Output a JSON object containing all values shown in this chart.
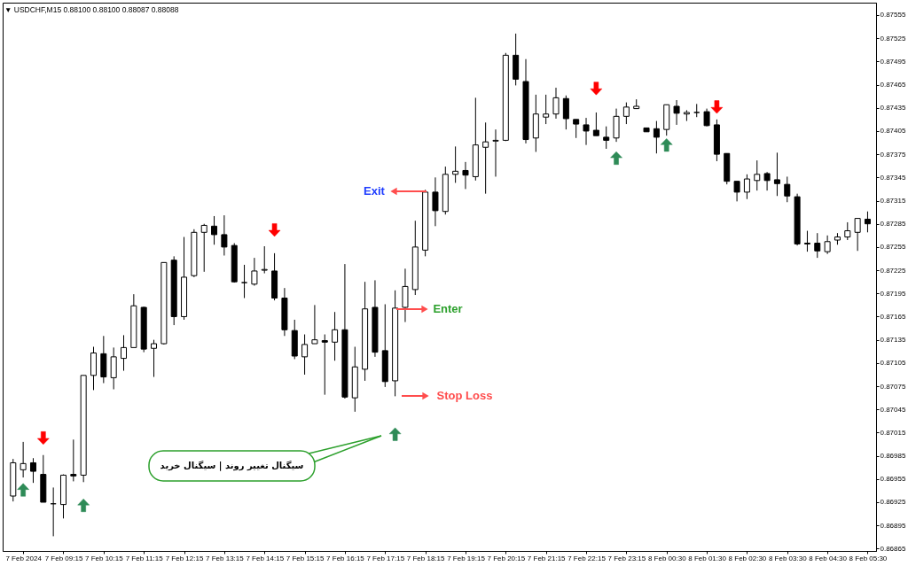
{
  "chart_data": {
    "type": "candlestick",
    "title": "▼ USDCHF,M15 0.88100 0.88100 0.88087 0.88088",
    "color": "#000000",
    "marker": "triangle",
    "categories": [
      null,
      "7 Feb 2024",
      null,
      null,
      null,
      "7 Feb 09:15",
      null,
      null,
      null,
      "7 Feb 10:15",
      null,
      null,
      null,
      "7 Feb 11:15",
      null,
      null,
      null,
      "7 Feb 12:15",
      null,
      null,
      null,
      "7 Feb 13:15",
      null,
      null,
      null,
      "7 Feb 14:15",
      null,
      null,
      null,
      "7 Feb 15:15",
      null,
      null,
      null,
      "7 Feb 16:15",
      null,
      null,
      null,
      "7 Feb 17:15",
      null,
      null,
      null,
      "7 Feb 18:15",
      null,
      null,
      null,
      "7 Feb 19:15",
      null,
      null,
      null,
      "7 Feb 20:15",
      null,
      null,
      null,
      "7 Feb 21:15",
      null,
      null,
      null,
      "7 Feb 22:15",
      null,
      null,
      null,
      "7 Feb 23:15",
      null,
      null,
      null,
      "8 Feb 00:30",
      null,
      null,
      null,
      "8 Feb 01:30",
      null,
      null,
      null,
      "8 Feb 02:30",
      null,
      null,
      null,
      "8 Feb 03:30",
      null,
      null,
      null,
      "8 Feb 04:30",
      null,
      null,
      null,
      "8 Feb 05:30"
    ],
    "ohlc": [
      [
        0.86933,
        0.86981,
        0.86926,
        0.86976
      ],
      [
        0.86967,
        0.87003,
        0.86957,
        0.86975
      ],
      [
        0.86976,
        0.86982,
        0.8695,
        0.86965
      ],
      [
        0.86961,
        0.86986,
        0.86925,
        0.86925
      ],
      [
        0.86923,
        0.86944,
        0.86881,
        0.86923
      ],
      [
        0.86922,
        0.86961,
        0.86904,
        0.8696
      ],
      [
        0.86961,
        0.87006,
        0.86952,
        0.86959
      ],
      [
        0.8696,
        0.87089,
        0.86951,
        0.87089
      ],
      [
        0.87089,
        0.87126,
        0.8707,
        0.87118
      ],
      [
        0.87117,
        0.8714,
        0.87079,
        0.87087
      ],
      [
        0.87086,
        0.87125,
        0.87071,
        0.87113
      ],
      [
        0.87111,
        0.87141,
        0.87095,
        0.87125
      ],
      [
        0.87125,
        0.87194,
        0.87125,
        0.87179
      ],
      [
        0.87177,
        0.87178,
        0.87119,
        0.87123
      ],
      [
        0.87124,
        0.87135,
        0.87087,
        0.8713
      ],
      [
        0.8713,
        0.87235,
        0.87129,
        0.87235
      ],
      [
        0.87238,
        0.87243,
        0.87154,
        0.87165
      ],
      [
        0.87165,
        0.87268,
        0.87161,
        0.87216
      ],
      [
        0.87218,
        0.87278,
        0.87216,
        0.87274
      ],
      [
        0.87274,
        0.87285,
        0.87223,
        0.87283
      ],
      [
        0.87282,
        0.87295,
        0.87258,
        0.87271
      ],
      [
        0.87271,
        0.87296,
        0.87244,
        0.87255
      ],
      [
        0.87257,
        0.8726,
        0.87209,
        0.8721
      ],
      [
        0.87209,
        0.87232,
        0.87189,
        0.87209
      ],
      [
        0.87207,
        0.87241,
        0.87205,
        0.87224
      ],
      [
        0.87225,
        0.87256,
        0.87221,
        0.87226
      ],
      [
        0.87224,
        0.87247,
        0.87186,
        0.87189
      ],
      [
        0.87189,
        0.87202,
        0.8714,
        0.87148
      ],
      [
        0.87147,
        0.87161,
        0.8711,
        0.87114
      ],
      [
        0.87113,
        0.87142,
        0.8709,
        0.87129
      ],
      [
        0.8713,
        0.8718,
        0.8713,
        0.87135
      ],
      [
        0.87134,
        0.87142,
        0.87064,
        0.87132
      ],
      [
        0.87132,
        0.87171,
        0.87108,
        0.87148
      ],
      [
        0.87148,
        0.87233,
        0.87059,
        0.87061
      ],
      [
        0.8706,
        0.87126,
        0.87042,
        0.871
      ],
      [
        0.87097,
        0.8721,
        0.87082,
        0.87175
      ],
      [
        0.87177,
        0.87212,
        0.87113,
        0.87119
      ],
      [
        0.87121,
        0.87181,
        0.87074,
        0.87081
      ],
      [
        0.87082,
        0.87199,
        0.87062,
        0.87176
      ],
      [
        0.87177,
        0.87227,
        0.87158,
        0.87204
      ],
      [
        0.872,
        0.87289,
        0.87193,
        0.87255
      ],
      [
        0.87251,
        0.87329,
        0.87243,
        0.87326
      ],
      [
        0.87326,
        0.87345,
        0.87282,
        0.87302
      ],
      [
        0.87301,
        0.87359,
        0.87297,
        0.87349
      ],
      [
        0.87349,
        0.87385,
        0.87338,
        0.87353
      ],
      [
        0.87354,
        0.87365,
        0.8733,
        0.87348
      ],
      [
        0.87346,
        0.87448,
        0.87341,
        0.87387
      ],
      [
        0.87384,
        0.87416,
        0.87324,
        0.87391
      ],
      [
        0.87392,
        0.87407,
        0.87346,
        0.87393
      ],
      [
        0.87393,
        0.87506,
        0.87392,
        0.87503
      ],
      [
        0.87503,
        0.87531,
        0.87464,
        0.87472
      ],
      [
        0.87469,
        0.87498,
        0.87389,
        0.87394
      ],
      [
        0.87396,
        0.87452,
        0.87378,
        0.87427
      ],
      [
        0.87423,
        0.87452,
        0.87414,
        0.87427
      ],
      [
        0.87427,
        0.87461,
        0.87421,
        0.87448
      ],
      [
        0.87447,
        0.87451,
        0.87407,
        0.87421
      ],
      [
        0.8742,
        0.8742,
        0.87396,
        0.87414
      ],
      [
        0.87413,
        0.87422,
        0.87387,
        0.87405
      ],
      [
        0.87406,
        0.87429,
        0.87399,
        0.87399
      ],
      [
        0.87397,
        0.87411,
        0.87382,
        0.87393
      ],
      [
        0.87396,
        0.87434,
        0.87391,
        0.87424
      ],
      [
        0.87424,
        0.87442,
        0.87414,
        0.87436
      ],
      [
        0.87434,
        0.87446,
        0.87434,
        0.87437
      ],
      [
        0.87409,
        0.87409,
        0.87404,
        0.87404
      ],
      [
        0.87408,
        0.87418,
        0.87376,
        0.87397
      ],
      [
        0.87407,
        0.87439,
        0.87399,
        0.87439
      ],
      [
        0.87437,
        0.87445,
        0.87413,
        0.87428
      ],
      [
        0.87427,
        0.87432,
        0.87418,
        0.87429
      ],
      [
        0.87429,
        0.8744,
        0.87423,
        0.87429
      ],
      [
        0.8743,
        0.87434,
        0.87411,
        0.87412
      ],
      [
        0.87413,
        0.8742,
        0.87366,
        0.87375
      ],
      [
        0.87376,
        0.87376,
        0.87336,
        0.8734
      ],
      [
        0.8734,
        0.8734,
        0.87314,
        0.87326
      ],
      [
        0.87326,
        0.87349,
        0.87317,
        0.87343
      ],
      [
        0.87341,
        0.87367,
        0.87328,
        0.87349
      ],
      [
        0.8735,
        0.87352,
        0.87328,
        0.87341
      ],
      [
        0.87342,
        0.87377,
        0.87321,
        0.87337
      ],
      [
        0.87336,
        0.87346,
        0.87313,
        0.87321
      ],
      [
        0.8732,
        0.87324,
        0.87257,
        0.87259
      ],
      [
        0.8726,
        0.87276,
        0.87249,
        0.87259
      ],
      [
        0.8726,
        0.87273,
        0.87241,
        0.8725
      ],
      [
        0.87249,
        0.8727,
        0.87246,
        0.87262
      ],
      [
        0.87264,
        0.87273,
        0.87258,
        0.87268
      ],
      [
        0.87268,
        0.87287,
        0.87264,
        0.87276
      ],
      [
        0.87274,
        0.87292,
        0.8725,
        0.87292
      ],
      [
        0.87291,
        0.87301,
        0.87274,
        0.87285
      ]
    ],
    "colors": [
      "#ffffff",
      "#ffffff",
      "#000000",
      "#000000",
      "#000000",
      "#ffffff",
      "#000000",
      "#ffffff",
      "#ffffff",
      "#000000",
      "#ffffff",
      "#ffffff",
      "#ffffff",
      "#000000",
      "#ffffff",
      "#ffffff",
      "#000000",
      "#ffffff",
      "#ffffff",
      "#ffffff",
      "#000000",
      "#000000",
      "#000000",
      "#000000",
      "#ffffff",
      "#ffffff",
      "#000000",
      "#000000",
      "#000000",
      "#ffffff",
      "#ffffff",
      "#000000",
      "#ffffff",
      "#000000",
      "#ffffff",
      "#ffffff",
      "#000000",
      "#000000",
      "#ffffff",
      "#ffffff",
      "#ffffff",
      "#ffffff",
      "#000000",
      "#ffffff",
      "#ffffff",
      "#000000",
      "#ffffff",
      "#ffffff",
      "#ffffff",
      "#ffffff",
      "#000000",
      "#000000",
      "#ffffff",
      "#ffffff",
      "#ffffff",
      "#000000",
      "#000000",
      "#000000",
      "#000000",
      "#000000",
      "#ffffff",
      "#ffffff",
      "#ffffff",
      "#000000",
      "#000000",
      "#ffffff",
      "#000000",
      "#ffffff",
      "#000000",
      "#000000",
      "#000000",
      "#000000",
      "#000000",
      "#ffffff",
      "#ffffff",
      "#000000",
      "#000000",
      "#000000",
      "#000000",
      "#000000",
      "#000000",
      "#ffffff",
      "#ffffff",
      "#ffffff",
      "#ffffff",
      "#000000"
    ],
    "ylim": [
      0.86862,
      0.87571
    ],
    "yticks": [
      0.86865,
      0.86895,
      0.86925,
      0.86955,
      0.86985,
      0.87015,
      0.87045,
      0.87075,
      0.87105,
      0.87135,
      0.87165,
      0.87195,
      0.87225,
      0.87255,
      0.87285,
      0.87315,
      0.87345,
      0.87375,
      0.87405,
      0.87435,
      0.87465,
      0.87495,
      0.87525,
      0.87555
    ],
    "series": [
      {
        "type": "scatter",
        "color": "#ff0000",
        "values": [
          null,
          null,
          null,
          0.87008,
          null,
          null,
          null,
          null,
          null,
          null,
          null,
          null,
          null,
          null,
          null,
          null,
          null,
          null,
          null,
          null,
          null,
          null,
          null,
          null,
          null,
          null,
          0.87277,
          null,
          null,
          null,
          null,
          null,
          null,
          null,
          null,
          null,
          null,
          null,
          null,
          null,
          null,
          null,
          null,
          null,
          null,
          null,
          null,
          null,
          null,
          null,
          null,
          null,
          null,
          null,
          null,
          null,
          null,
          null,
          0.8746,
          null,
          null,
          null,
          null,
          null,
          null,
          null,
          null,
          null,
          null,
          null,
          0.87436,
          null,
          null,
          null,
          null,
          null,
          null,
          null,
          null,
          null,
          null,
          null,
          null,
          null,
          null,
          null
        ]
      },
      {
        "type": "scatter",
        "color": "#2e8b57",
        "values": [
          null,
          0.86941,
          null,
          null,
          null,
          null,
          null,
          0.86921,
          null,
          null,
          null,
          null,
          null,
          null,
          null,
          null,
          null,
          null,
          null,
          null,
          null,
          null,
          null,
          null,
          null,
          null,
          null,
          null,
          null,
          null,
          null,
          null,
          null,
          null,
          null,
          null,
          null,
          null,
          0.87013,
          null,
          null,
          null,
          null,
          null,
          null,
          null,
          null,
          null,
          null,
          null,
          null,
          null,
          null,
          null,
          null,
          null,
          null,
          null,
          null,
          null,
          0.8737,
          null,
          null,
          null,
          null,
          0.87387,
          null,
          null,
          null,
          null,
          null,
          null,
          null,
          null,
          null,
          null,
          null,
          null,
          null,
          null,
          null,
          null,
          null,
          null,
          null,
          null
        ]
      }
    ],
    "annotations": [
      "Exit",
      "Enter",
      "Stop Loss",
      "سیگنال تغییر روند | سیگنال خرید"
    ]
  }
}
